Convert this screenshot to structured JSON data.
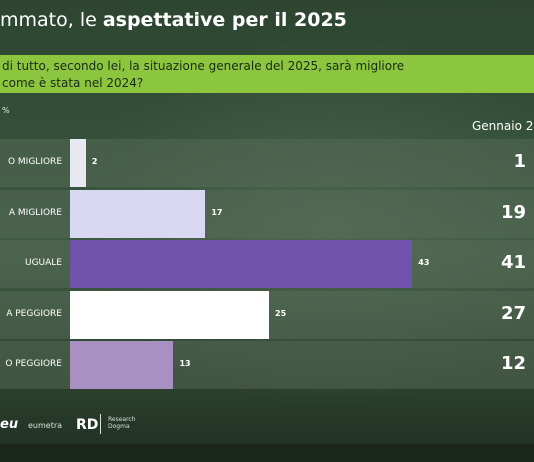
{
  "title": {
    "light": "mmato, le ",
    "bold": "aspettative per il 2025"
  },
  "question": {
    "line1": "di tutto, secondo lei, la situazione generale del 2025, sarà migliore",
    "line2": "come è stata nel 2024?"
  },
  "unit_label": "%",
  "comparison_label": "Gennaio 2",
  "logos": {
    "first": "eu",
    "first_sub": "eumetra",
    "second": "RD",
    "second_sub": "Research Dogma"
  },
  "colors": {
    "background": "#2f4733",
    "question_band": "#8cc63f"
  },
  "chart_data": {
    "type": "bar",
    "orientation": "horizontal",
    "categories": [
      "O MIGLIORE",
      "A MIGLIORE",
      "UGUALE",
      "A PEGGIORE",
      "O PEGGIORE"
    ],
    "series": [
      {
        "values": [
          2,
          17,
          43,
          25,
          13
        ],
        "colors": [
          "#e8e8f2",
          "#d8d8f2",
          "#7052ad",
          "#ffffff",
          "#a891c2"
        ]
      },
      {
        "name": "Gennaio 2",
        "values": [
          1,
          19,
          41,
          27,
          12
        ]
      }
    ],
    "xlim": [
      0,
      50
    ],
    "grid": false
  }
}
